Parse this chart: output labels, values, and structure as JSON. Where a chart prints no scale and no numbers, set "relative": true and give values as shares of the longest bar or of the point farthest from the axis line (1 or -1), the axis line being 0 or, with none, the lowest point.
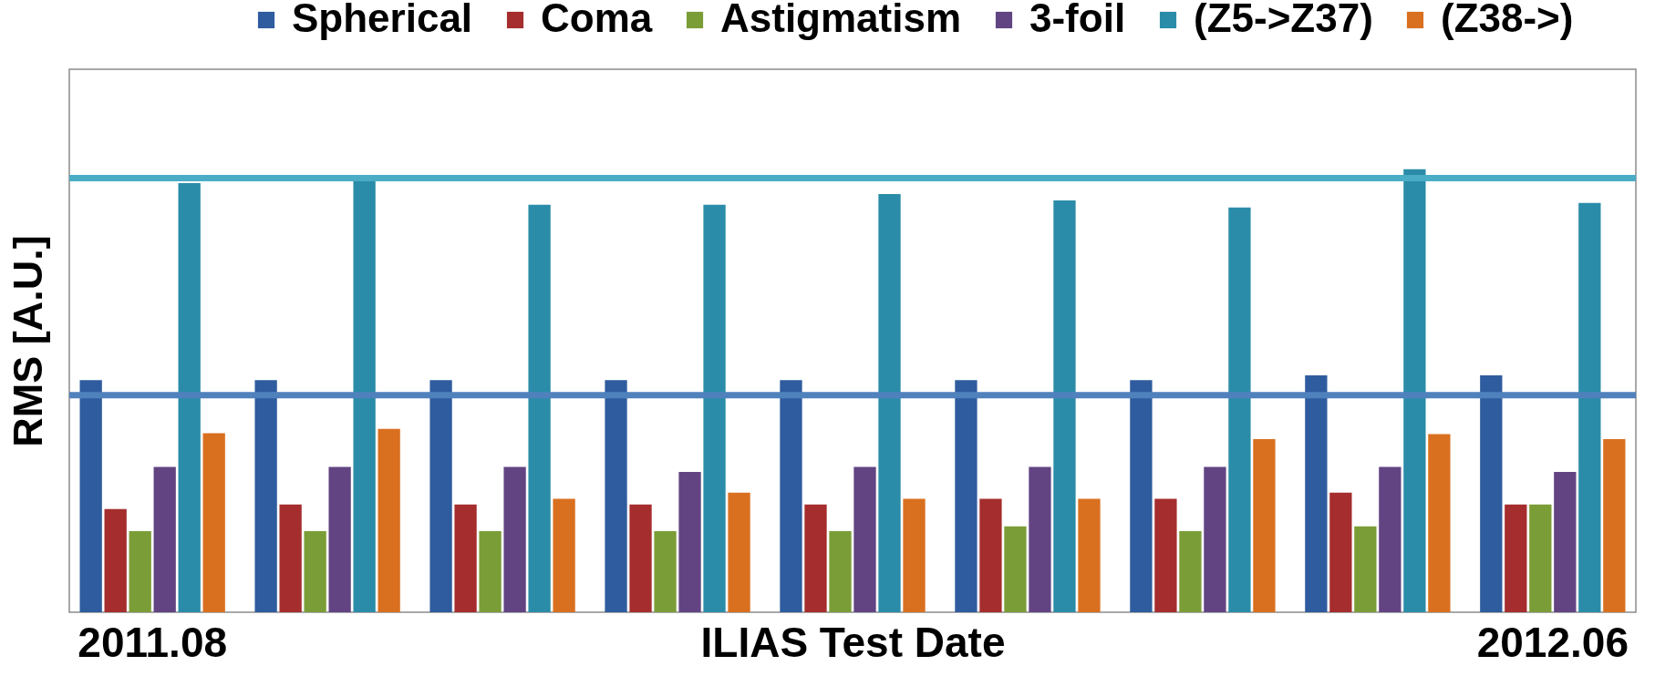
{
  "chart_data": {
    "type": "bar",
    "relative": true,
    "xlabel": "ILIAS Test Date",
    "ylabel": "RMS [A.U.]",
    "legend": "top",
    "categories": [
      "2011.08",
      null,
      null,
      null,
      null,
      null,
      null,
      null,
      "2012.06"
    ],
    "series": [
      {
        "name": "Spherical",
        "color": "#2e5c9e",
        "values": [
          0.524,
          0.524,
          0.524,
          0.524,
          0.524,
          0.524,
          0.524,
          0.535,
          0.535
        ]
      },
      {
        "name": "Coma",
        "color": "#a52d2d",
        "values": [
          0.233,
          0.243,
          0.243,
          0.243,
          0.243,
          0.256,
          0.256,
          0.27,
          0.243
        ]
      },
      {
        "name": "Astigmatism",
        "color": "#7b9d37",
        "values": [
          0.183,
          0.183,
          0.183,
          0.183,
          0.183,
          0.194,
          0.183,
          0.194,
          0.243
        ]
      },
      {
        "name": "3-foil",
        "color": "#624483",
        "values": [
          0.328,
          0.328,
          0.328,
          0.317,
          0.328,
          0.328,
          0.328,
          0.328,
          0.317
        ]
      },
      {
        "name": "(Z5->Z37)",
        "color": "#2a8ca8",
        "values": [
          0.969,
          0.974,
          0.92,
          0.92,
          0.944,
          0.93,
          0.914,
          1.0,
          0.924
        ]
      },
      {
        "name": "(Z38->)",
        "color": "#d97020",
        "values": [
          0.404,
          0.414,
          0.256,
          0.27,
          0.256,
          0.256,
          0.391,
          0.402,
          0.391
        ]
      }
    ],
    "ref_lines": [
      {
        "axis": "y",
        "value": 0.98,
        "color": "#4bacc6"
      },
      {
        "axis": "y",
        "value": 0.49,
        "color": "#4f81bd"
      }
    ]
  }
}
